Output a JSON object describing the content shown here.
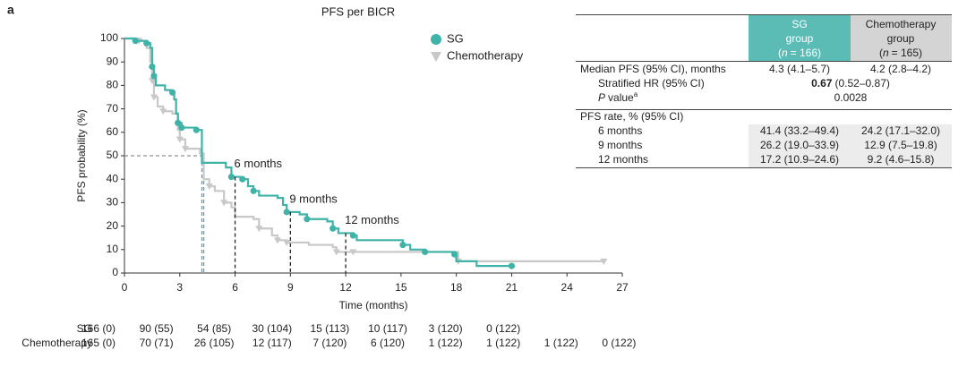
{
  "chart_data": {
    "type": "km",
    "panel": "a",
    "title": "PFS per BICR",
    "x_label": "Time (months)",
    "y_label": "PFS probability (%)",
    "xlim": [
      0,
      27
    ],
    "xticks": [
      0,
      3,
      6,
      9,
      12,
      15,
      18,
      21,
      24,
      27
    ],
    "ylim": [
      0,
      100
    ],
    "yticks": [
      0,
      10,
      20,
      30,
      40,
      50,
      60,
      70,
      80,
      90,
      100
    ],
    "series": [
      {
        "name": "SG",
        "color": "#3fb3a8",
        "marker": "circle",
        "x": [
          0,
          0.6,
          1.2,
          1.4,
          1.5,
          1.6,
          1.7,
          2.2,
          2.5,
          2.7,
          2.8,
          2.9,
          3.1,
          3.9,
          4.2,
          5.5,
          5.8,
          6.3,
          6.7,
          7.0,
          7.3,
          8.3,
          8.6,
          8.8,
          9.5,
          9.9,
          11.0,
          11.3,
          11.6,
          12.4,
          12.6,
          15.1,
          15.5,
          16.3,
          17.9,
          18.0,
          19.1,
          21
        ],
        "values": [
          100,
          99,
          98,
          96,
          88,
          84,
          80,
          78,
          77,
          74,
          68,
          64,
          62,
          61,
          47,
          45,
          41,
          40,
          37,
          35,
          33,
          32,
          29,
          26,
          25,
          23,
          22,
          19,
          17,
          16,
          14,
          12,
          10,
          9,
          8,
          5,
          3,
          3
        ],
        "censor_x": [
          0.6,
          1.2,
          1.5,
          1.6,
          2.6,
          2.9,
          3.1,
          3.9,
          5.8,
          6.4,
          7.0,
          8.8,
          9.9,
          11.3,
          12.4,
          15.1,
          16.3,
          17.9,
          21
        ],
        "censor_values": [
          99,
          98,
          88,
          84,
          77,
          64,
          62,
          61,
          41,
          40,
          35,
          26,
          23,
          19,
          16,
          12,
          9,
          8,
          3
        ]
      },
      {
        "name": "Chemotherapy",
        "color": "#c8c8c8",
        "marker": "triangle",
        "x": [
          0,
          0.8,
          1.2,
          1.4,
          1.5,
          1.6,
          1.8,
          2.1,
          2.6,
          2.9,
          3.0,
          3.3,
          4.1,
          4.3,
          4.6,
          4.9,
          5.4,
          5.8,
          6.0,
          7.0,
          7.3,
          8.0,
          8.3,
          8.8,
          10.0,
          11.3,
          11.5,
          17.9,
          18.1,
          26
        ],
        "values": [
          100,
          99,
          96,
          90,
          82,
          75,
          71,
          69,
          68,
          61,
          57,
          53,
          51,
          40,
          37,
          35,
          30,
          28,
          24,
          23,
          19,
          16,
          14,
          13,
          12,
          11,
          9,
          9,
          5,
          5
        ],
        "censor_x": [
          0.8,
          1.5,
          1.6,
          2.1,
          3.0,
          3.3,
          4.6,
          5.4,
          7.3,
          8.3,
          8.8,
          11.5,
          12.4,
          18.1,
          26
        ],
        "censor_values": [
          99,
          82,
          75,
          69,
          57,
          53,
          37,
          30,
          19,
          14,
          13,
          9,
          9,
          5,
          5
        ]
      }
    ],
    "medians": [
      {
        "x": 4.3,
        "y": 50,
        "color": "#3fb3a8"
      },
      {
        "x": 4.2,
        "y": 50,
        "color": "#5aa0d8"
      }
    ],
    "landmarks": [
      {
        "x": 6,
        "y": 41,
        "label": "6 months"
      },
      {
        "x": 9,
        "y": 26,
        "label": "9 months"
      },
      {
        "x": 12,
        "y": 17,
        "label": "12 months"
      }
    ],
    "risk_table": {
      "rows": [
        {
          "name": "SG",
          "values": [
            "166 (0)",
            "90 (55)",
            "54 (85)",
            "30 (104)",
            "15 (113)",
            "10 (117)",
            "3 (120)",
            "0 (122)"
          ]
        },
        {
          "name": "Chemotherapy",
          "values": [
            "165 (0)",
            "70 (71)",
            "26 (105)",
            "12 (117)",
            "7 (120)",
            "6 (120)",
            "1 (122)",
            "1 (122)",
            "1 (122)",
            "0 (122)"
          ]
        }
      ]
    }
  },
  "table": {
    "header": [
      {
        "lines": [
          "SG",
          "group"
        ],
        "n_open": "(",
        "n": "n",
        "n_rest": "= 166)",
        "color": "#5bbcb5"
      },
      {
        "lines": [
          "Chemotherapy",
          "group"
        ],
        "n_open": "(",
        "n": "n",
        "n_rest": "= 165)",
        "color": "#d4d4d4"
      }
    ],
    "rows": [
      {
        "label": "Median PFS (95% CI), months",
        "values": [
          "4.3 (4.1–5.7)",
          "4.2 (2.8–4.2)"
        ]
      },
      {
        "label": "Stratified HR (95% CI)",
        "value_bold": "0.67",
        "value_rest": "(0.52–0.87)"
      },
      {
        "label_italic": "P",
        "label": "value",
        "label_sup": "a",
        "value": "0.0028"
      },
      {
        "label": "PFS rate, % (95% CI)"
      },
      {
        "label": "6 months",
        "values": [
          "41.4 (33.2–49.4)",
          "24.2 (17.1–32.0)"
        ]
      },
      {
        "label": "9 months",
        "values": [
          "26.2 (19.0–33.9)",
          "12.9 (7.5–19.8)"
        ]
      },
      {
        "label": "12 months",
        "values": [
          "17.2 (10.9–24.6)",
          "9.2 (4.6–15.8)"
        ]
      }
    ]
  }
}
